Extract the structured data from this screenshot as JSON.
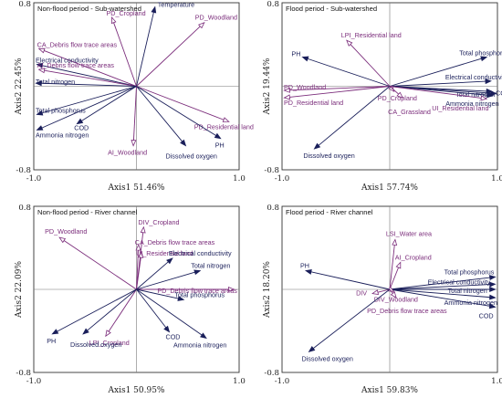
{
  "colors": {
    "env": "#1a1f5a",
    "land": "#7b2d7b",
    "frame": "#333333",
    "zero": "#777777"
  },
  "chart_data": [
    {
      "type": "scatter",
      "title": "Non-flood period - Sub-watershed",
      "xlabel": "Axis1 51.46%",
      "ylabel": "Axis2 22.45%",
      "xlim": [
        -1.0,
        1.0
      ],
      "ylim": [
        -0.8,
        0.8
      ],
      "x_ticks": [
        "-1.0",
        "1.0"
      ],
      "y_ticks": [
        "0.8",
        "-0.8"
      ],
      "vectors": [
        {
          "label": "Temperature",
          "x": 0.18,
          "y": 0.76,
          "kind": "env"
        },
        {
          "label": "PD_Cropland",
          "x": -0.24,
          "y": 0.66,
          "kind": "land"
        },
        {
          "label": "PD_Woodland",
          "x": 0.66,
          "y": 0.61,
          "kind": "land"
        },
        {
          "label": "CA_Debris flow trace areas",
          "x": -0.95,
          "y": 0.36,
          "kind": "land"
        },
        {
          "label": "Electrical conductivity",
          "x": -0.97,
          "y": 0.21,
          "kind": "env"
        },
        {
          "label": "AI_Debris flow trace areas",
          "x": -0.95,
          "y": 0.16,
          "kind": "land"
        },
        {
          "label": "Total nitrogen",
          "x": -0.98,
          "y": 0.03,
          "kind": "env"
        },
        {
          "label": "Total phosphorus",
          "x": -0.97,
          "y": -0.27,
          "kind": "env"
        },
        {
          "label": "COD",
          "x": -0.58,
          "y": -0.36,
          "kind": "env"
        },
        {
          "label": "Ammonia nitrogen",
          "x": -0.97,
          "y": -0.42,
          "kind": "env"
        },
        {
          "label": "AI_Woodland",
          "x": -0.03,
          "y": -0.57,
          "kind": "land"
        },
        {
          "label": "PD_Residential land",
          "x": 0.9,
          "y": -0.34,
          "kind": "land"
        },
        {
          "label": "PH",
          "x": 0.82,
          "y": -0.5,
          "kind": "env"
        },
        {
          "label": "Dissolved oxygen",
          "x": 0.48,
          "y": -0.57,
          "kind": "env"
        }
      ]
    },
    {
      "type": "scatter",
      "title": "Flood period - Sub-watershed",
      "xlabel": "Axis1 57.74%",
      "ylabel": "Axis2 19.44%",
      "xlim": [
        -1.0,
        1.0
      ],
      "ylim": [
        -0.8,
        0.8
      ],
      "x_ticks": [
        "-1.0",
        "1.0"
      ],
      "y_ticks": [
        "0.8",
        "-0.8"
      ],
      "vectors": [
        {
          "label": "LPI_Residential land",
          "x": -0.4,
          "y": 0.44,
          "kind": "land"
        },
        {
          "label": "PH",
          "x": -0.81,
          "y": 0.28,
          "kind": "env"
        },
        {
          "label": "Total phosphorus",
          "x": 0.9,
          "y": 0.28,
          "kind": "env"
        },
        {
          "label": "Electrical conductivity",
          "x": 0.94,
          "y": 0.05,
          "kind": "env"
        },
        {
          "label": "COD",
          "x": 0.99,
          "y": -0.07,
          "kind": "env"
        },
        {
          "label": "Total nitrogen",
          "x": 0.95,
          "y": -0.05,
          "kind": "env"
        },
        {
          "label": "Ammonia nitrogen",
          "x": 0.96,
          "y": -0.09,
          "kind": "env"
        },
        {
          "label": "PD_Woodland",
          "x": -0.98,
          "y": -0.04,
          "kind": "land"
        },
        {
          "label": "PD_Residential land",
          "x": -0.98,
          "y": -0.11,
          "kind": "land"
        },
        {
          "label": "PD_Cropland",
          "x": 0.04,
          "y": -0.05,
          "kind": "land"
        },
        {
          "label": "CA_Grassland",
          "x": 0.12,
          "y": -0.11,
          "kind": "land"
        },
        {
          "label": "UI_Residential land",
          "x": 0.9,
          "y": -0.12,
          "kind": "land"
        },
        {
          "label": "Dissolved oxygen",
          "x": -0.7,
          "y": -0.6,
          "kind": "env"
        }
      ]
    },
    {
      "type": "scatter",
      "title": "Non-flood period - River channel",
      "xlabel": "Axis1 50.95%",
      "ylabel": "Axis2 22.09%",
      "xlim": [
        -1.0,
        1.0
      ],
      "ylim": [
        -0.8,
        0.8
      ],
      "x_ticks": [
        "-1.0",
        "1.0"
      ],
      "y_ticks": [
        "0.8",
        "-0.8"
      ],
      "vectors": [
        {
          "label": "PD_Woodland",
          "x": -0.75,
          "y": 0.5,
          "kind": "land"
        },
        {
          "label": "DIV_Cropland",
          "x": 0.07,
          "y": 0.6,
          "kind": "land"
        },
        {
          "label": "CA_Debris flow trace areas",
          "x": 0.02,
          "y": 0.43,
          "kind": "land"
        },
        {
          "label": "UI_Residential land",
          "x": 0.05,
          "y": 0.36,
          "kind": "land"
        },
        {
          "label": "Electrical conductivity",
          "x": 0.35,
          "y": 0.3,
          "kind": "env"
        },
        {
          "label": "Total nitrogen",
          "x": 0.62,
          "y": 0.18,
          "kind": "env"
        },
        {
          "label": "PD_Debris flow trace areas",
          "x": 0.95,
          "y": 0.0,
          "kind": "land"
        },
        {
          "label": "Total phosphorus",
          "x": 0.46,
          "y": -0.1,
          "kind": "env"
        },
        {
          "label": "COD",
          "x": 0.32,
          "y": -0.41,
          "kind": "env"
        },
        {
          "label": "Ammonia nitrogen",
          "x": 0.68,
          "y": -0.47,
          "kind": "env"
        },
        {
          "label": "LPI_Cropland",
          "x": -0.3,
          "y": -0.45,
          "kind": "land"
        },
        {
          "label": "PH",
          "x": -0.82,
          "y": -0.43,
          "kind": "env"
        },
        {
          "label": "Dissolved oxygen",
          "x": -0.52,
          "y": -0.43,
          "kind": "env"
        }
      ]
    },
    {
      "type": "scatter",
      "title": "Flood period - River channel",
      "xlabel": "Axis1 59.83%",
      "ylabel": "Axis2 18.20%",
      "xlim": [
        -1.0,
        1.0
      ],
      "ylim": [
        -0.8,
        0.8
      ],
      "x_ticks": [
        "-1.0",
        "1.0"
      ],
      "y_ticks": [
        "0.8",
        "-0.8"
      ],
      "vectors": [
        {
          "label": "LSI_Water area",
          "x": 0.05,
          "y": 0.48,
          "kind": "land"
        },
        {
          "label": "AI_Cropland",
          "x": 0.1,
          "y": 0.26,
          "kind": "land"
        },
        {
          "label": "PH",
          "x": -0.78,
          "y": 0.18,
          "kind": "env"
        },
        {
          "label": "Total phosphorus",
          "x": 0.98,
          "y": 0.12,
          "kind": "env"
        },
        {
          "label": "Electrical conductivity",
          "x": 0.98,
          "y": 0.05,
          "kind": "env"
        },
        {
          "label": "Total nitrogen",
          "x": 0.98,
          "y": 0.0,
          "kind": "env"
        },
        {
          "label": "Ammonia nitrogen",
          "x": 0.98,
          "y": -0.08,
          "kind": "env"
        },
        {
          "label": "COD",
          "x": 0.98,
          "y": -0.17,
          "kind": "env"
        },
        {
          "label": "DIV",
          "x": -0.16,
          "y": -0.04,
          "kind": "land"
        },
        {
          "label": "DIV_Woodland",
          "x": 0.04,
          "y": -0.02,
          "kind": "land"
        },
        {
          "label": "PD_Debris flow trace areas",
          "x": 0.06,
          "y": -0.08,
          "kind": "land"
        },
        {
          "label": "Dissolved oxygen",
          "x": -0.75,
          "y": -0.6,
          "kind": "env"
        }
      ]
    }
  ]
}
